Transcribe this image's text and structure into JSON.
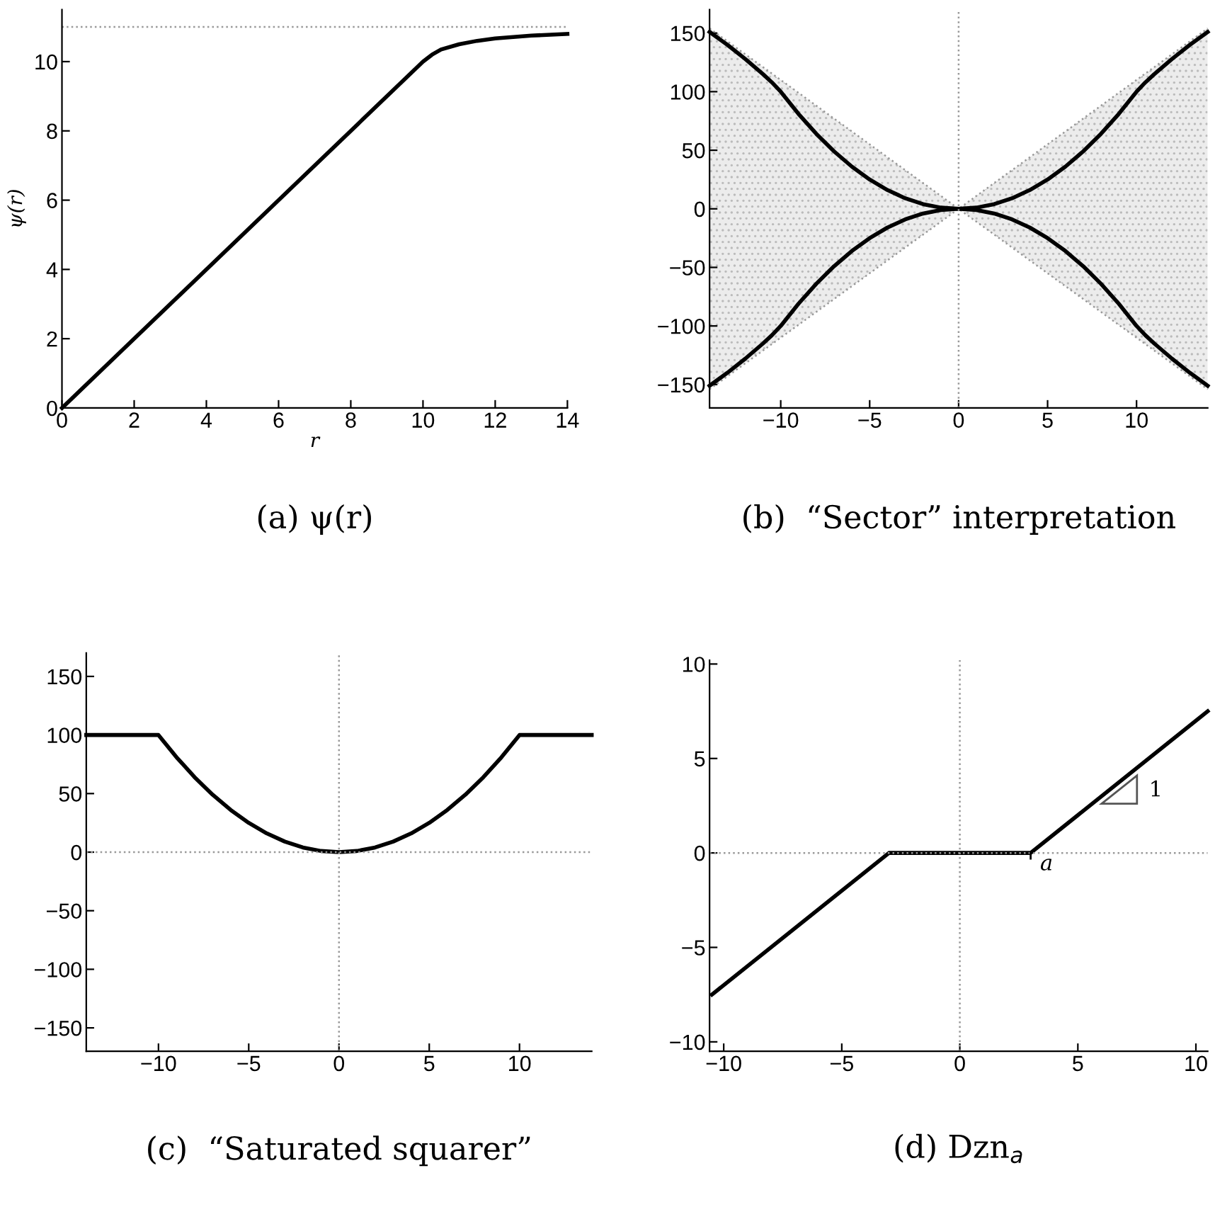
{
  "chart_data": [
    {
      "type": "line",
      "title": "(a) ψ(r)",
      "xlabel": "r",
      "ylabel": "ψ(r)",
      "xlim": [
        0,
        14
      ],
      "ylim": [
        0,
        11.5
      ],
      "xticks": [
        0,
        2,
        4,
        6,
        8,
        10,
        12,
        14
      ],
      "yticks": [
        0,
        2,
        4,
        6,
        8,
        10
      ],
      "grid": false,
      "legend": false,
      "series": [
        {
          "color": "#000000",
          "x": [
            0,
            10,
            10.25,
            10.5,
            11,
            11.5,
            12,
            13,
            14
          ],
          "values": [
            0,
            10,
            10.2,
            10.35,
            10.5,
            10.6,
            10.67,
            10.75,
            10.8
          ]
        }
      ],
      "ref_lines": [
        {
          "axis": "y",
          "value": 11,
          "color": "#999999",
          "line_style": "dotted"
        }
      ]
    },
    {
      "type": "line",
      "title": "(b)  “Sector” interpretation",
      "xlim": [
        -14,
        14
      ],
      "ylim": [
        -170,
        170
      ],
      "xticks": [
        -10,
        -5,
        0,
        5,
        10
      ],
      "yticks": [
        -150,
        -100,
        -50,
        0,
        50,
        100,
        150
      ],
      "grid": false,
      "legend": false,
      "series": [
        {
          "color": "#999999",
          "line_style": "dotted",
          "x": [
            -14,
            0,
            14
          ],
          "values": [
            154,
            0,
            154
          ],
          "lower": [
            -154,
            0,
            -154
          ],
          "upper": [
            154,
            0,
            154
          ]
        },
        {
          "color": "#999999",
          "line_style": "dotted",
          "x": [
            -14,
            0,
            14
          ],
          "values": [
            -154,
            0,
            -154
          ]
        },
        {
          "color": "#000000",
          "x": [
            -14,
            -13,
            -12,
            -11,
            -10.5,
            -10,
            -9,
            -8,
            -7,
            -6,
            -5,
            -4,
            -3,
            -2,
            -1,
            0,
            1,
            2,
            3,
            4,
            5,
            6,
            7,
            8,
            9,
            10,
            10.5,
            11,
            12,
            13,
            14
          ],
          "values": [
            151,
            140,
            128,
            115,
            108,
            100,
            81,
            64,
            49,
            36,
            25,
            16,
            9,
            4,
            1,
            0,
            1,
            4,
            9,
            16,
            25,
            36,
            49,
            64,
            81,
            100,
            108,
            115,
            128,
            140,
            151
          ]
        },
        {
          "color": "#000000",
          "x": [
            -14,
            -13,
            -12,
            -11,
            -10.5,
            -10,
            -9,
            -8,
            -7,
            -6,
            -5,
            -4,
            -3,
            -2,
            -1,
            0,
            1,
            2,
            3,
            4,
            5,
            6,
            7,
            8,
            9,
            10,
            10.5,
            11,
            12,
            13,
            14
          ],
          "values": [
            -151,
            -140,
            -128,
            -115,
            -108,
            -100,
            -81,
            -64,
            -49,
            -36,
            -25,
            -16,
            -9,
            -4,
            -1,
            0,
            -1,
            -4,
            -9,
            -16,
            -25,
            -36,
            -49,
            -64,
            -81,
            -100,
            -108,
            -115,
            -128,
            -140,
            -151
          ]
        }
      ],
      "ref_lines": [
        {
          "axis": "x",
          "value": 0,
          "color": "#999999",
          "line_style": "dotted"
        }
      ]
    },
    {
      "type": "line",
      "title": "(c)  “Saturated squarer”",
      "xlim": [
        -14,
        14
      ],
      "ylim": [
        -170,
        170
      ],
      "xticks": [
        -10,
        -5,
        0,
        5,
        10
      ],
      "yticks": [
        -150,
        -100,
        -50,
        0,
        50,
        100,
        150
      ],
      "grid": false,
      "legend": false,
      "series": [
        {
          "color": "#000000",
          "x": [
            -14,
            -10,
            -9,
            -8,
            -7,
            -6,
            -5,
            -4,
            -3,
            -2,
            -1,
            0,
            1,
            2,
            3,
            4,
            5,
            6,
            7,
            8,
            9,
            10,
            14
          ],
          "values": [
            100,
            100,
            81,
            64,
            49,
            36,
            25,
            16,
            9,
            4,
            1,
            0,
            1,
            4,
            9,
            16,
            25,
            36,
            49,
            64,
            81,
            100,
            100
          ]
        }
      ],
      "ref_lines": [
        {
          "axis": "x",
          "value": 0,
          "color": "#999999",
          "line_style": "dotted"
        },
        {
          "axis": "y",
          "value": 0,
          "color": "#999999",
          "line_style": "dotted"
        }
      ]
    },
    {
      "type": "line",
      "title": "(d) Dzn$_{a}$",
      "xlim": [
        -10.6,
        10.5
      ],
      "ylim": [
        -10.5,
        10.2
      ],
      "xticks": [
        -10,
        -5,
        0,
        5,
        10
      ],
      "yticks": [
        -10,
        -5,
        0,
        5,
        10
      ],
      "grid": false,
      "legend": false,
      "series": [
        {
          "color": "#000000",
          "x": [
            -10.5,
            -3,
            3,
            10.5
          ],
          "values": [
            -7.5,
            0,
            0,
            7.5
          ]
        }
      ],
      "ref_lines": [
        {
          "axis": "x",
          "value": 0,
          "color": "#999999",
          "line_style": "dotted"
        },
        {
          "axis": "y",
          "value": 0,
          "color": "#999999",
          "line_style": "dotted"
        }
      ],
      "annotations": [
        {
          "text": "a",
          "x": 3,
          "y": 0
        },
        "1"
      ]
    }
  ]
}
